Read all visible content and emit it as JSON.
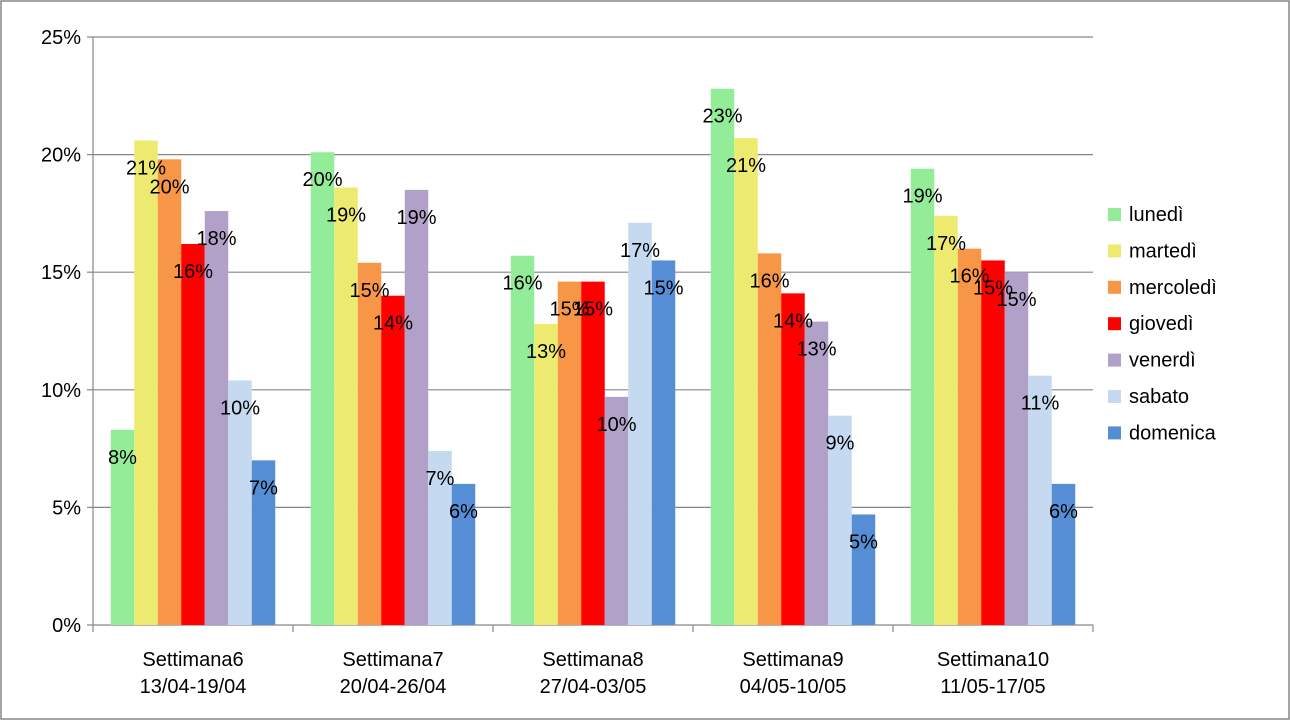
{
  "chart_data": {
    "type": "bar",
    "title": "",
    "xlabel": "",
    "ylabel": "",
    "ylim": [
      0,
      0.25
    ],
    "yticks": [
      0,
      0.05,
      0.1,
      0.15,
      0.2,
      0.25
    ],
    "ytick_labels": [
      "0%",
      "5%",
      "10%",
      "15%",
      "20%",
      "25%"
    ],
    "grid": true,
    "legend_position": "right",
    "categories": [
      [
        "Settimana6",
        "13/04-19/04"
      ],
      [
        "Settimana7",
        "20/04-26/04"
      ],
      [
        "Settimana8",
        "27/04-03/05"
      ],
      [
        "Settimana9",
        "04/05-10/05"
      ],
      [
        "Settimana10",
        "11/05-17/05"
      ]
    ],
    "series": [
      {
        "name": "lunedì",
        "color": "#92EC98",
        "values": [
          0.083,
          0.201,
          0.157,
          0.228,
          0.194
        ],
        "labels": [
          "8%",
          "20%",
          "16%",
          "23%",
          "19%"
        ]
      },
      {
        "name": "martedì",
        "color": "#EDEB6F",
        "values": [
          0.206,
          0.186,
          0.128,
          0.207,
          0.174
        ],
        "labels": [
          "21%",
          "19%",
          "13%",
          "21%",
          "17%"
        ]
      },
      {
        "name": "mercoledì",
        "color": "#F79646",
        "values": [
          0.198,
          0.154,
          0.146,
          0.158,
          0.16
        ],
        "labels": [
          "20%",
          "15%",
          "15%",
          "16%",
          "16%"
        ]
      },
      {
        "name": "giovedì",
        "color": "#FF0000",
        "values": [
          0.162,
          0.14,
          0.146,
          0.141,
          0.155
        ],
        "labels": [
          "16%",
          "14%",
          "15%",
          "14%",
          "15%"
        ]
      },
      {
        "name": "venerdì",
        "color": "#B1A0C7",
        "values": [
          0.176,
          0.185,
          0.097,
          0.129,
          0.15
        ],
        "labels": [
          "18%",
          "19%",
          "10%",
          "13%",
          "15%"
        ]
      },
      {
        "name": "sabato",
        "color": "#C5D9F1",
        "values": [
          0.104,
          0.074,
          0.171,
          0.089,
          0.106
        ],
        "labels": [
          "10%",
          "7%",
          "17%",
          "9%",
          "11%"
        ]
      },
      {
        "name": "domenica",
        "color": "#558ED5",
        "values": [
          0.07,
          0.06,
          0.155,
          0.047,
          0.06
        ],
        "labels": [
          "7%",
          "6%",
          "15%",
          "5%",
          "6%"
        ]
      }
    ]
  }
}
